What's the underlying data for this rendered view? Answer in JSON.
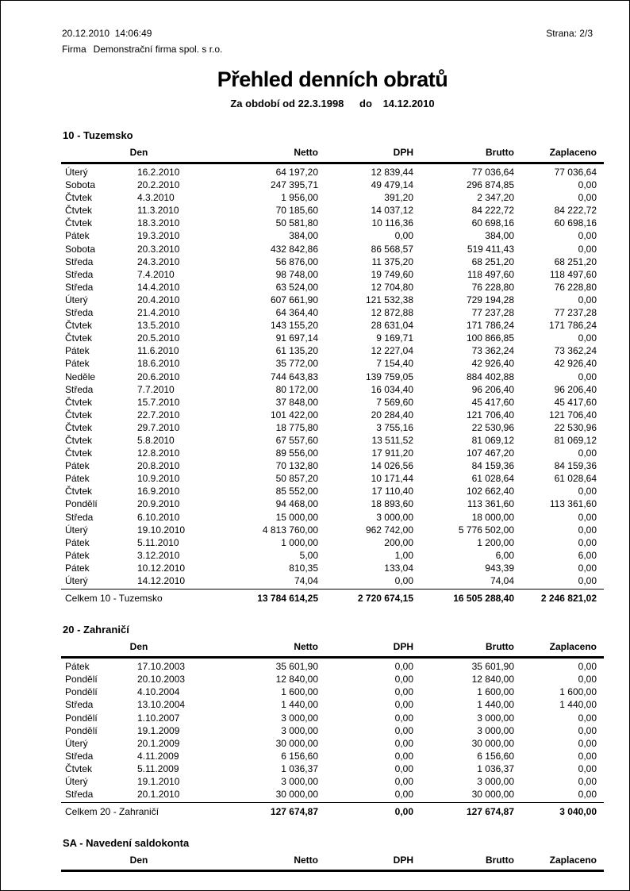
{
  "header": {
    "datetime": "20.12.2010  14:06:49",
    "page_label": "Strana: 2/3",
    "company_label": "Firma",
    "company_name": "Demonstrační firma spol. s r.o."
  },
  "title": "Přehled denních obratů",
  "period": {
    "label_from": "Za období od",
    "from": "22.3.1998",
    "label_to": "do",
    "to": "14.12.2010"
  },
  "columns": [
    "Den",
    "Netto",
    "DPH",
    "Brutto",
    "Zaplaceno"
  ],
  "sections": [
    {
      "title": "10 - Tuzemsko",
      "rows": [
        [
          "Úterý",
          "16.2.2010",
          "64 197,20",
          "12 839,44",
          "77 036,64",
          "77 036,64"
        ],
        [
          "Sobota",
          "20.2.2010",
          "247 395,71",
          "49 479,14",
          "296 874,85",
          "0,00"
        ],
        [
          "Čtvtek",
          "4.3.2010",
          "1 956,00",
          "391,20",
          "2 347,20",
          "0,00"
        ],
        [
          "Čtvtek",
          "11.3.2010",
          "70 185,60",
          "14 037,12",
          "84 222,72",
          "84 222,72"
        ],
        [
          "Čtvtek",
          "18.3.2010",
          "50 581,80",
          "10 116,36",
          "60 698,16",
          "60 698,16"
        ],
        [
          "Pátek",
          "19.3.2010",
          "384,00",
          "0,00",
          "384,00",
          "0,00"
        ],
        [
          "Sobota",
          "20.3.2010",
          "432 842,86",
          "86 568,57",
          "519 411,43",
          "0,00"
        ],
        [
          "Středa",
          "24.3.2010",
          "56 876,00",
          "11 375,20",
          "68 251,20",
          "68 251,20"
        ],
        [
          "Středa",
          "7.4.2010",
          "98 748,00",
          "19 749,60",
          "118 497,60",
          "118 497,60"
        ],
        [
          "Středa",
          "14.4.2010",
          "63 524,00",
          "12 704,80",
          "76 228,80",
          "76 228,80"
        ],
        [
          "Úterý",
          "20.4.2010",
          "607 661,90",
          "121 532,38",
          "729 194,28",
          "0,00"
        ],
        [
          "Středa",
          "21.4.2010",
          "64 364,40",
          "12 872,88",
          "77 237,28",
          "77 237,28"
        ],
        [
          "Čtvtek",
          "13.5.2010",
          "143 155,20",
          "28 631,04",
          "171 786,24",
          "171 786,24"
        ],
        [
          "Čtvtek",
          "20.5.2010",
          "91 697,14",
          "9 169,71",
          "100 866,85",
          "0,00"
        ],
        [
          "Pátek",
          "11.6.2010",
          "61 135,20",
          "12 227,04",
          "73 362,24",
          "73 362,24"
        ],
        [
          "Pátek",
          "18.6.2010",
          "35 772,00",
          "7 154,40",
          "42 926,40",
          "42 926,40"
        ],
        [
          "Neděle",
          "20.6.2010",
          "744 643,83",
          "139 759,05",
          "884 402,88",
          "0,00"
        ],
        [
          "Středa",
          "7.7.2010",
          "80 172,00",
          "16 034,40",
          "96 206,40",
          "96 206,40"
        ],
        [
          "Čtvtek",
          "15.7.2010",
          "37 848,00",
          "7 569,60",
          "45 417,60",
          "45 417,60"
        ],
        [
          "Čtvtek",
          "22.7.2010",
          "101 422,00",
          "20 284,40",
          "121 706,40",
          "121 706,40"
        ],
        [
          "Čtvtek",
          "29.7.2010",
          "18 775,80",
          "3 755,16",
          "22 530,96",
          "22 530,96"
        ],
        [
          "Čtvtek",
          "5.8.2010",
          "67 557,60",
          "13 511,52",
          "81 069,12",
          "81 069,12"
        ],
        [
          "Čtvtek",
          "12.8.2010",
          "89 556,00",
          "17 911,20",
          "107 467,20",
          "0,00"
        ],
        [
          "Pátek",
          "20.8.2010",
          "70 132,80",
          "14 026,56",
          "84 159,36",
          "84 159,36"
        ],
        [
          "Pátek",
          "10.9.2010",
          "50 857,20",
          "10 171,44",
          "61 028,64",
          "61 028,64"
        ],
        [
          "Čtvtek",
          "16.9.2010",
          "85 552,00",
          "17 110,40",
          "102 662,40",
          "0,00"
        ],
        [
          "Pondělí",
          "20.9.2010",
          "94 468,00",
          "18 893,60",
          "113 361,60",
          "113 361,60"
        ],
        [
          "Středa",
          "6.10.2010",
          "15 000,00",
          "3 000,00",
          "18 000,00",
          "0,00"
        ],
        [
          "Úterý",
          "19.10.2010",
          "4 813 760,00",
          "962 742,00",
          "5 776 502,00",
          "0,00"
        ],
        [
          "Pátek",
          "5.11.2010",
          "1 000,00",
          "200,00",
          "1 200,00",
          "0,00"
        ],
        [
          "Pátek",
          "3.12.2010",
          "5,00",
          "1,00",
          "6,00",
          "6,00"
        ],
        [
          "Pátek",
          "10.12.2010",
          "810,35",
          "133,04",
          "943,39",
          "0,00"
        ],
        [
          "Úterý",
          "14.12.2010",
          "74,04",
          "0,00",
          "74,04",
          "0,00"
        ]
      ],
      "total": [
        "Celkem 10 - Tuzemsko",
        "13 784 614,25",
        "2 720 674,15",
        "16 505 288,40",
        "2 246 821,02"
      ]
    },
    {
      "title": "20 - Zahraničí",
      "rows": [
        [
          "Pátek",
          "17.10.2003",
          "35 601,90",
          "0,00",
          "35 601,90",
          "0,00"
        ],
        [
          "Pondělí",
          "20.10.2003",
          "12 840,00",
          "0,00",
          "12 840,00",
          "0,00"
        ],
        [
          "Pondělí",
          "4.10.2004",
          "1 600,00",
          "0,00",
          "1 600,00",
          "1 600,00"
        ],
        [
          "Středa",
          "13.10.2004",
          "1 440,00",
          "0,00",
          "1 440,00",
          "1 440,00"
        ],
        [
          "Pondělí",
          "1.10.2007",
          "3 000,00",
          "0,00",
          "3 000,00",
          "0,00"
        ],
        [
          "Pondělí",
          "19.1.2009",
          "3 000,00",
          "0,00",
          "3 000,00",
          "0,00"
        ],
        [
          "Úterý",
          "20.1.2009",
          "30 000,00",
          "0,00",
          "30 000,00",
          "0,00"
        ],
        [
          "Středa",
          "4.11.2009",
          "6 156,60",
          "0,00",
          "6 156,60",
          "0,00"
        ],
        [
          "Čtvtek",
          "5.11.2009",
          "1 036,37",
          "0,00",
          "1 036,37",
          "0,00"
        ],
        [
          "Úterý",
          "19.1.2010",
          "3 000,00",
          "0,00",
          "3 000,00",
          "0,00"
        ],
        [
          "Středa",
          "20.1.2010",
          "30 000,00",
          "0,00",
          "30 000,00",
          "0,00"
        ]
      ],
      "total": [
        "Celkem 20 - Zahraničí",
        "127 674,87",
        "0,00",
        "127 674,87",
        "3 040,00"
      ]
    },
    {
      "title": "SA - Navedení saldokonta",
      "rows": [],
      "total": null
    }
  ]
}
